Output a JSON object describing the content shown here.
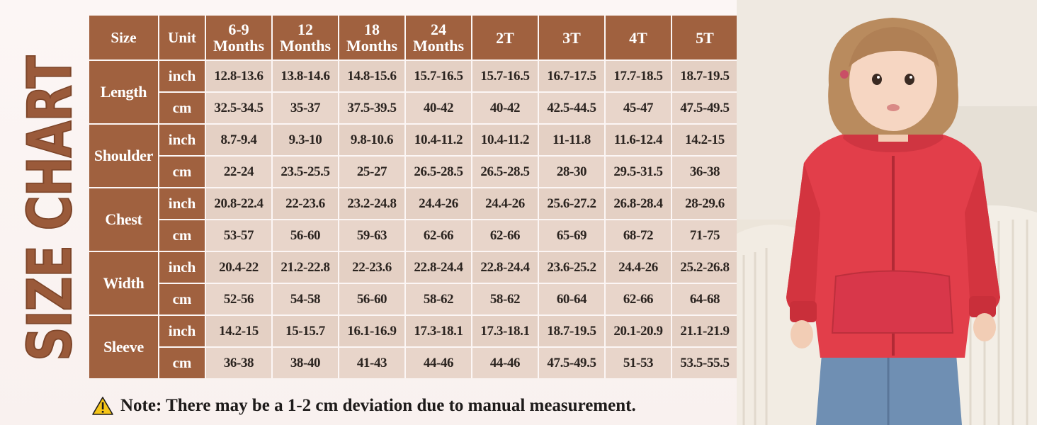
{
  "title": "SIZE CHART",
  "colors": {
    "header_brown": "#a0613f",
    "cell_beige": "#e4d0c4",
    "background": "#fbf4f2",
    "title_brown": "#9a5a3a",
    "hoodie_red": "#e23e4a",
    "jeans_blue": "#6f8fb3"
  },
  "table": {
    "col_size": "Size",
    "col_unit": "Unit",
    "size_headers": [
      {
        "line1": "6-9",
        "line2": "Months"
      },
      {
        "line1": "12",
        "line2": "Months"
      },
      {
        "line1": "18",
        "line2": "Months"
      },
      {
        "line1": "24",
        "line2": "Months"
      },
      {
        "line1": "2T",
        "line2": ""
      },
      {
        "line1": "3T",
        "line2": ""
      },
      {
        "line1": "4T",
        "line2": ""
      },
      {
        "line1": "5T",
        "line2": ""
      }
    ],
    "categories": [
      {
        "name": "Length",
        "rows": [
          {
            "unit": "inch",
            "values": [
              "12.8-13.6",
              "13.8-14.6",
              "14.8-15.6",
              "15.7-16.5",
              "15.7-16.5",
              "16.7-17.5",
              "17.7-18.5",
              "18.7-19.5"
            ]
          },
          {
            "unit": "cm",
            "values": [
              "32.5-34.5",
              "35-37",
              "37.5-39.5",
              "40-42",
              "40-42",
              "42.5-44.5",
              "45-47",
              "47.5-49.5"
            ]
          }
        ]
      },
      {
        "name": "Shoulder",
        "rows": [
          {
            "unit": "inch",
            "values": [
              "8.7-9.4",
              "9.3-10",
              "9.8-10.6",
              "10.4-11.2",
              "10.4-11.2",
              "11-11.8",
              "11.6-12.4",
              "14.2-15"
            ]
          },
          {
            "unit": "cm",
            "values": [
              "22-24",
              "23.5-25.5",
              "25-27",
              "26.5-28.5",
              "26.5-28.5",
              "28-30",
              "29.5-31.5",
              "36-38"
            ]
          }
        ]
      },
      {
        "name": "Chest",
        "rows": [
          {
            "unit": "inch",
            "values": [
              "20.8-22.4",
              "22-23.6",
              "23.2-24.8",
              "24.4-26",
              "24.4-26",
              "25.6-27.2",
              "26.8-28.4",
              "28-29.6"
            ]
          },
          {
            "unit": "cm",
            "values": [
              "53-57",
              "56-60",
              "59-63",
              "62-66",
              "62-66",
              "65-69",
              "68-72",
              "71-75"
            ]
          }
        ]
      },
      {
        "name": "Width",
        "rows": [
          {
            "unit": "inch",
            "values": [
              "20.4-22",
              "21.2-22.8",
              "22-23.6",
              "22.8-24.4",
              "22.8-24.4",
              "23.6-25.2",
              "24.4-26",
              "25.2-26.8"
            ]
          },
          {
            "unit": "cm",
            "values": [
              "52-56",
              "54-58",
              "56-60",
              "58-62",
              "58-62",
              "60-64",
              "62-66",
              "64-68"
            ]
          }
        ]
      },
      {
        "name": "Sleeve",
        "rows": [
          {
            "unit": "inch",
            "values": [
              "14.2-15",
              "15-15.7",
              "16.1-16.9",
              "17.3-18.1",
              "17.3-18.1",
              "18.7-19.5",
              "20.1-20.9",
              "21.1-21.9"
            ]
          },
          {
            "unit": "cm",
            "values": [
              "36-38",
              "38-40",
              "41-43",
              "44-46",
              "44-46",
              "47.5-49.5",
              "51-53",
              "53.5-55.5"
            ]
          }
        ]
      }
    ]
  },
  "note": {
    "icon": "warning-icon",
    "text": "Note: There may be a 1-2 cm deviation due to manual measurement."
  }
}
